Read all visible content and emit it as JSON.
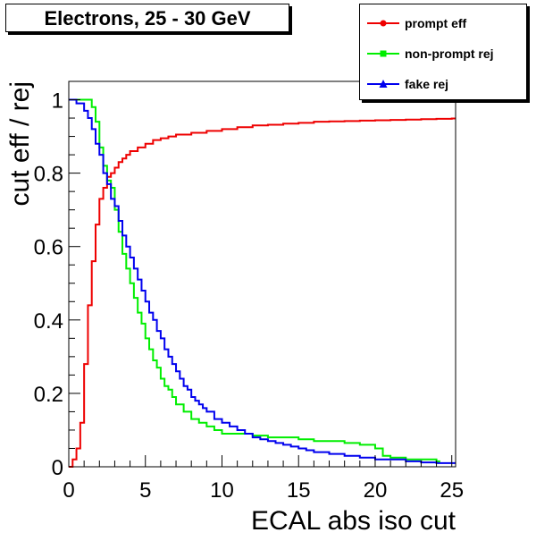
{
  "title": "Electrons, 25 - 30 GeV",
  "chart_data": {
    "type": "line",
    "xlabel": "ECAL abs iso cut",
    "ylabel": "cut eff / rej",
    "xlim": [
      0,
      25.25
    ],
    "ylim": [
      0,
      1.05
    ],
    "x_ticks": [
      0,
      5,
      10,
      15,
      20,
      25
    ],
    "x_tick_labels": [
      "0",
      "5",
      "10",
      "15",
      "20",
      "25"
    ],
    "y_ticks": [
      0,
      0.2,
      0.4,
      0.6,
      0.8,
      1
    ],
    "y_tick_labels": [
      "0",
      "0.2",
      "0.4",
      "0.6",
      "0.8",
      "1"
    ],
    "grid": false,
    "legend_position": "top-right",
    "step_style": "histogram",
    "series": [
      {
        "name": "prompt eff",
        "color": "#ee0000",
        "marker": "circle",
        "x": [
          0,
          0.25,
          0.5,
          0.75,
          1.0,
          1.25,
          1.5,
          1.75,
          2.0,
          2.25,
          2.5,
          2.75,
          3.0,
          3.25,
          3.5,
          3.75,
          4.0,
          4.5,
          5.0,
          5.5,
          6.0,
          6.5,
          7.0,
          8.0,
          9.0,
          10.0,
          11.0,
          12.0,
          13.0,
          14.0,
          15.0,
          16.0,
          17.0,
          18.0,
          19.0,
          20.0,
          21.0,
          22.0,
          23.0,
          24.0,
          25.0
        ],
        "values": [
          0.0,
          0.02,
          0.05,
          0.12,
          0.28,
          0.44,
          0.56,
          0.66,
          0.73,
          0.76,
          0.79,
          0.8,
          0.815,
          0.83,
          0.84,
          0.85,
          0.86,
          0.87,
          0.88,
          0.89,
          0.895,
          0.9,
          0.905,
          0.91,
          0.915,
          0.92,
          0.925,
          0.93,
          0.932,
          0.935,
          0.937,
          0.94,
          0.941,
          0.942,
          0.943,
          0.944,
          0.945,
          0.946,
          0.947,
          0.948,
          0.949
        ]
      },
      {
        "name": "non-prompt rej",
        "color": "#00ee00",
        "marker": "square",
        "x": [
          0,
          0.5,
          1.0,
          1.5,
          1.75,
          2.0,
          2.25,
          2.5,
          2.75,
          3.0,
          3.25,
          3.5,
          3.75,
          4.0,
          4.25,
          4.5,
          4.75,
          5.0,
          5.25,
          5.5,
          5.75,
          6.0,
          6.25,
          6.5,
          6.75,
          7.0,
          7.5,
          8.0,
          8.5,
          9.0,
          9.5,
          10.0,
          10.5,
          11.0,
          12.0,
          13.0,
          14.0,
          15.0,
          16.0,
          17.0,
          18.0,
          19.0,
          20.0,
          20.5,
          21.0,
          22.0,
          23.0,
          24.0
        ],
        "values": [
          1.0,
          1.0,
          1.0,
          0.98,
          0.94,
          0.87,
          0.82,
          0.78,
          0.76,
          0.7,
          0.64,
          0.58,
          0.54,
          0.5,
          0.46,
          0.42,
          0.39,
          0.35,
          0.32,
          0.29,
          0.27,
          0.24,
          0.22,
          0.21,
          0.19,
          0.17,
          0.15,
          0.13,
          0.12,
          0.11,
          0.1,
          0.09,
          0.09,
          0.09,
          0.085,
          0.08,
          0.08,
          0.075,
          0.07,
          0.07,
          0.065,
          0.06,
          0.05,
          0.03,
          0.025,
          0.02,
          0.02,
          0.015
        ]
      },
      {
        "name": "fake rej",
        "color": "#0000ee",
        "marker": "triangle",
        "x": [
          0,
          0.5,
          1.0,
          1.25,
          1.5,
          1.75,
          2.0,
          2.25,
          2.5,
          2.75,
          3.0,
          3.25,
          3.5,
          3.75,
          4.0,
          4.25,
          4.5,
          4.75,
          5.0,
          5.25,
          5.5,
          5.75,
          6.0,
          6.25,
          6.5,
          6.75,
          7.0,
          7.25,
          7.5,
          7.75,
          8.0,
          8.25,
          8.5,
          8.75,
          9.0,
          9.5,
          10.0,
          10.5,
          11.0,
          11.5,
          12.0,
          12.5,
          13.0,
          13.5,
          14.0,
          14.5,
          15.0,
          15.5,
          16.0,
          17.0,
          18.0,
          19.0,
          20.0,
          21.0,
          22.0,
          23.0,
          24.0,
          25.0
        ],
        "values": [
          1.0,
          0.99,
          0.97,
          0.95,
          0.92,
          0.88,
          0.85,
          0.8,
          0.77,
          0.73,
          0.71,
          0.67,
          0.63,
          0.6,
          0.57,
          0.54,
          0.51,
          0.48,
          0.45,
          0.42,
          0.4,
          0.37,
          0.35,
          0.32,
          0.3,
          0.28,
          0.26,
          0.24,
          0.22,
          0.21,
          0.19,
          0.18,
          0.17,
          0.16,
          0.15,
          0.13,
          0.12,
          0.11,
          0.1,
          0.09,
          0.08,
          0.075,
          0.07,
          0.065,
          0.06,
          0.055,
          0.05,
          0.045,
          0.04,
          0.035,
          0.03,
          0.025,
          0.02,
          0.02,
          0.015,
          0.012,
          0.01,
          0.01
        ]
      }
    ]
  }
}
